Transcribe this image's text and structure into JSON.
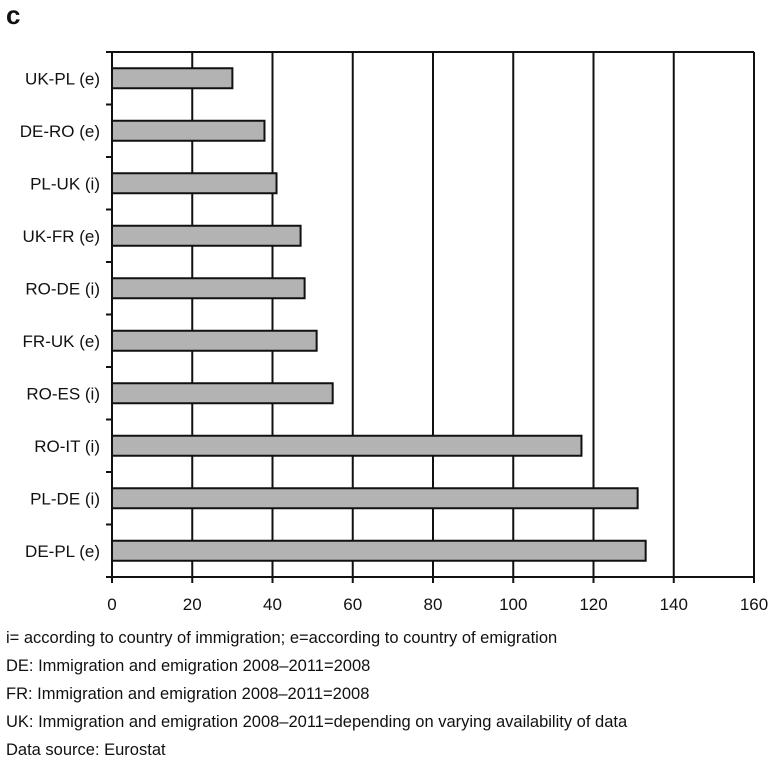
{
  "panel_label": "c",
  "chart_data": {
    "type": "bar",
    "orientation": "horizontal",
    "categories": [
      "UK-PL (e)",
      "DE-RO (e)",
      "PL-UK (i)",
      "UK-FR (e)",
      "RO-DE (i)",
      "FR-UK (e)",
      "RO-ES (i)",
      "RO-IT (i)",
      "PL-DE (i)",
      "DE-PL (e)"
    ],
    "values": [
      30,
      38,
      41,
      47,
      48,
      51,
      55,
      117,
      131,
      133
    ],
    "xlim": [
      0,
      160
    ],
    "xticks": [
      0,
      20,
      40,
      60,
      80,
      100,
      120,
      140,
      160
    ],
    "grid": true,
    "bar_color": "#b3b3b3",
    "title": "",
    "xlabel": "",
    "ylabel": ""
  },
  "notes": [
    "i= according to country of immigration; e=according to country of emigration",
    "DE: Immigration and emigration 2008–2011=2008",
    "FR: Immigration and emigration 2008–2011=2008",
    "UK: Immigration and emigration 2008–2011=depending on varying availability of data",
    "Data source: Eurostat"
  ]
}
